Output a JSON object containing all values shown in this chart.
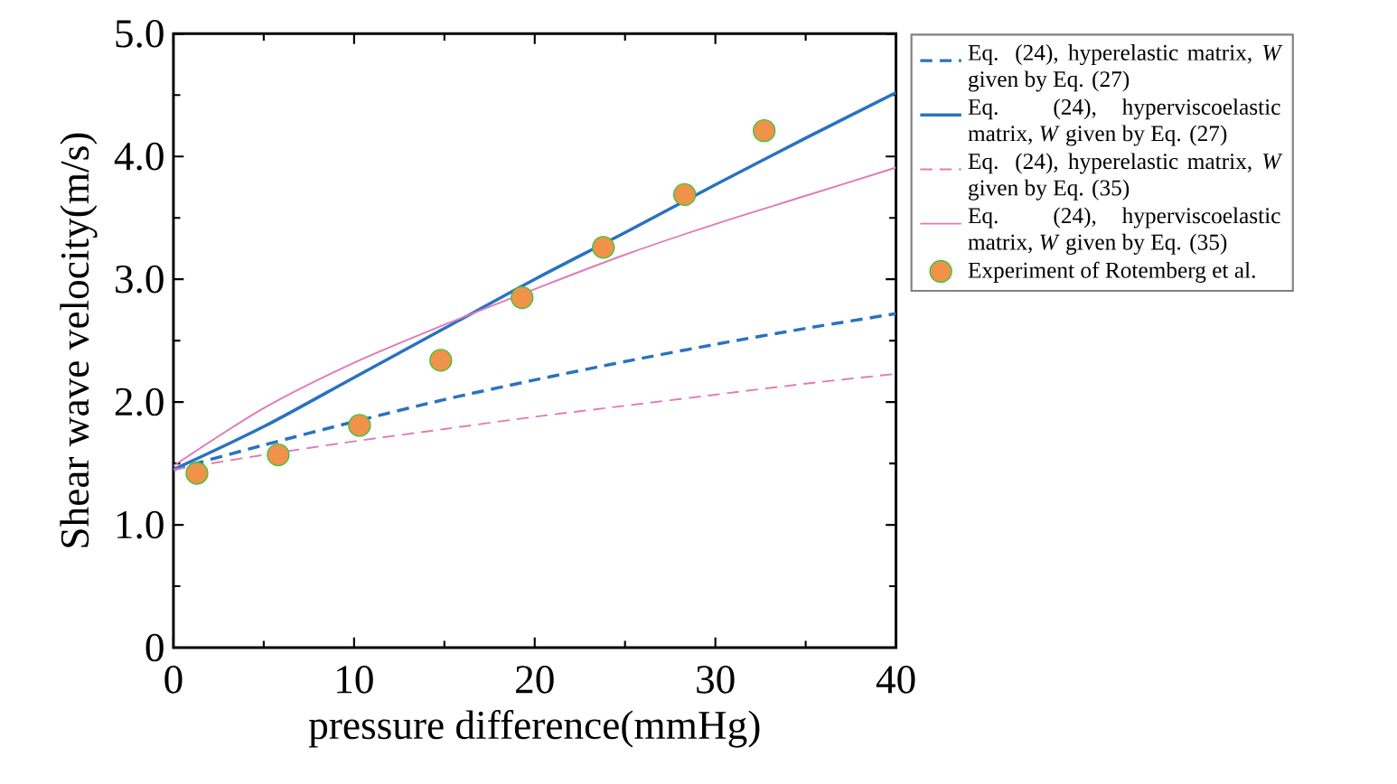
{
  "chart_data": {
    "type": "line",
    "xlabel": "pressure difference(mmHg)",
    "ylabel": "Shear wave velocity(m/s)",
    "xlim": [
      0,
      40
    ],
    "ylim": [
      0,
      5
    ],
    "xticks": [
      0,
      10,
      20,
      30,
      40
    ],
    "yticks": [
      {
        "value": 0,
        "label": "0"
      },
      {
        "value": 1,
        "label": "1.0"
      },
      {
        "value": 2,
        "label": "2.0"
      },
      {
        "value": 3,
        "label": "3.0"
      },
      {
        "value": 4,
        "label": "4.0"
      },
      {
        "value": 5,
        "label": "5.0"
      }
    ],
    "grid": false,
    "legend": "right",
    "series": [
      {
        "name": "Eq. (24), hyperelastic matrix, *W* given by Eq. (27)",
        "color": "#2a72c0",
        "line_style": "dashed",
        "marker": "none",
        "x": [
          0,
          5,
          10,
          15,
          20,
          25,
          30,
          35,
          40
        ],
        "values": [
          1.45,
          1.65,
          1.84,
          2.02,
          2.18,
          2.33,
          2.47,
          2.6,
          2.72
        ]
      },
      {
        "name": "Eq. (24), hyperviscoelastic matrix, *W* given by Eq. (27)",
        "color": "#2a72c0",
        "line_style": "solid",
        "marker": "none",
        "x": [
          0,
          5,
          10,
          15,
          20,
          25,
          30,
          35,
          40
        ],
        "values": [
          1.45,
          1.8,
          2.2,
          2.6,
          3.0,
          3.38,
          3.77,
          4.15,
          4.52
        ]
      },
      {
        "name": "Eq. (24), hyperelastic matrix, *W* given by Eq. (35)",
        "color": "#e07ab8",
        "line_style": "dashed",
        "marker": "none",
        "x": [
          0,
          5,
          10,
          15,
          20,
          25,
          30,
          35,
          40
        ],
        "values": [
          1.45,
          1.57,
          1.68,
          1.78,
          1.88,
          1.97,
          2.06,
          2.15,
          2.23
        ]
      },
      {
        "name": "Eq. (24), hyperviscoelastic matrix, *W* given by Eq. (35)",
        "color": "#e07ab8",
        "line_style": "solid",
        "marker": "none",
        "x": [
          0,
          5,
          10,
          15,
          20,
          25,
          30,
          35,
          40
        ],
        "values": [
          1.48,
          1.95,
          2.32,
          2.63,
          2.92,
          3.2,
          3.45,
          3.68,
          3.91
        ]
      },
      {
        "name": "Experiment of Rotemberg et al.",
        "type": "scatter",
        "color": "#f0924a",
        "marker": "circle",
        "x": [
          1.3,
          5.8,
          10.3,
          14.8,
          19.3,
          23.8,
          28.3,
          32.7
        ],
        "values": [
          1.42,
          1.57,
          1.81,
          2.34,
          2.85,
          3.26,
          3.69,
          4.21
        ]
      }
    ]
  }
}
